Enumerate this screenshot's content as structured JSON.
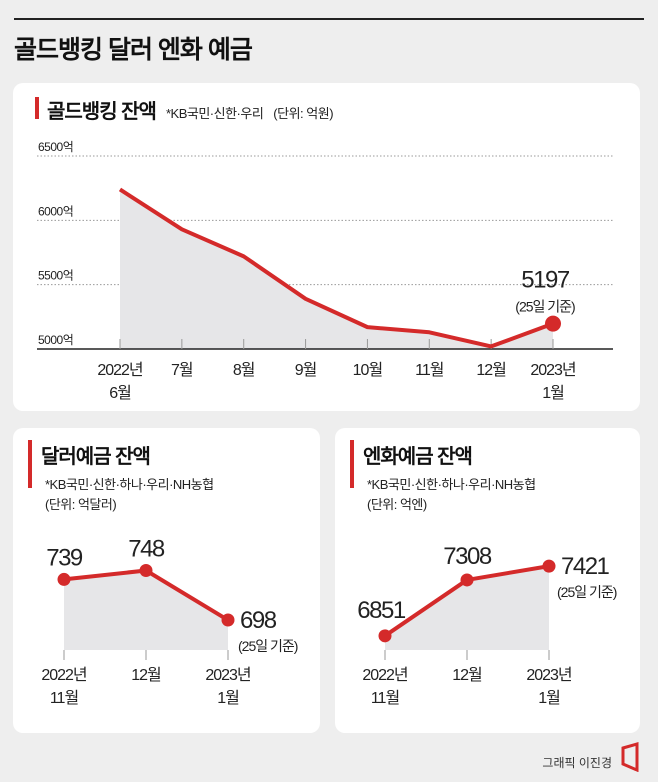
{
  "title": "골드뱅킹 달러 엔화 예금",
  "credit": "그래픽 이진경",
  "colors": {
    "accent": "#d42a2a",
    "fill": "#e6e6e8",
    "grid": "#999999"
  },
  "chart_data": [
    {
      "type": "area",
      "title": "골드뱅킹 잔액",
      "note": "*KB국민·신한·우리",
      "unit": "(단위: 억원)",
      "categories": [
        [
          "2022년",
          "6월"
        ],
        [
          "7월"
        ],
        [
          "8월"
        ],
        [
          "9월"
        ],
        [
          "10월"
        ],
        [
          "11월"
        ],
        [
          "12월"
        ],
        [
          "2023년",
          "1월"
        ]
      ],
      "values": [
        6240,
        5930,
        5720,
        5390,
        5170,
        5130,
        5020,
        5197
      ],
      "yticks": [
        "6500억",
        "6000억",
        "5500억",
        "5000억"
      ],
      "ytick_values": [
        6500,
        6000,
        5500,
        5000
      ],
      "ylim": [
        5000,
        6500
      ],
      "grid": true,
      "label": {
        "value": "5197",
        "note": "(25일 기준)"
      }
    },
    {
      "type": "area",
      "title": "달러예금 잔액",
      "note": "*KB국민·신한·하나·우리·NH농협",
      "unit": "(단위: 억달러)",
      "categories": [
        [
          "2022년",
          "11월"
        ],
        [
          "12월"
        ],
        [
          "2023년",
          "1월"
        ]
      ],
      "values": [
        739,
        748,
        698
      ],
      "labels": [
        "739",
        "748",
        "698"
      ],
      "last_note": "(25일 기준)",
      "ylim": [
        590,
        800
      ]
    },
    {
      "type": "area",
      "title": "엔화예금 잔액",
      "note": "*KB국민·신한·하나·우리·NH농협",
      "unit": "(단위: 억엔)",
      "categories": [
        [
          "2022년",
          "11월"
        ],
        [
          "12월"
        ],
        [
          "2023년",
          "1월"
        ]
      ],
      "values": [
        6851,
        7308,
        7421
      ],
      "labels": [
        "6851",
        "7308",
        "7421"
      ],
      "last_note": "(25일 기준)",
      "ylim": [
        6400,
        7700
      ]
    }
  ]
}
